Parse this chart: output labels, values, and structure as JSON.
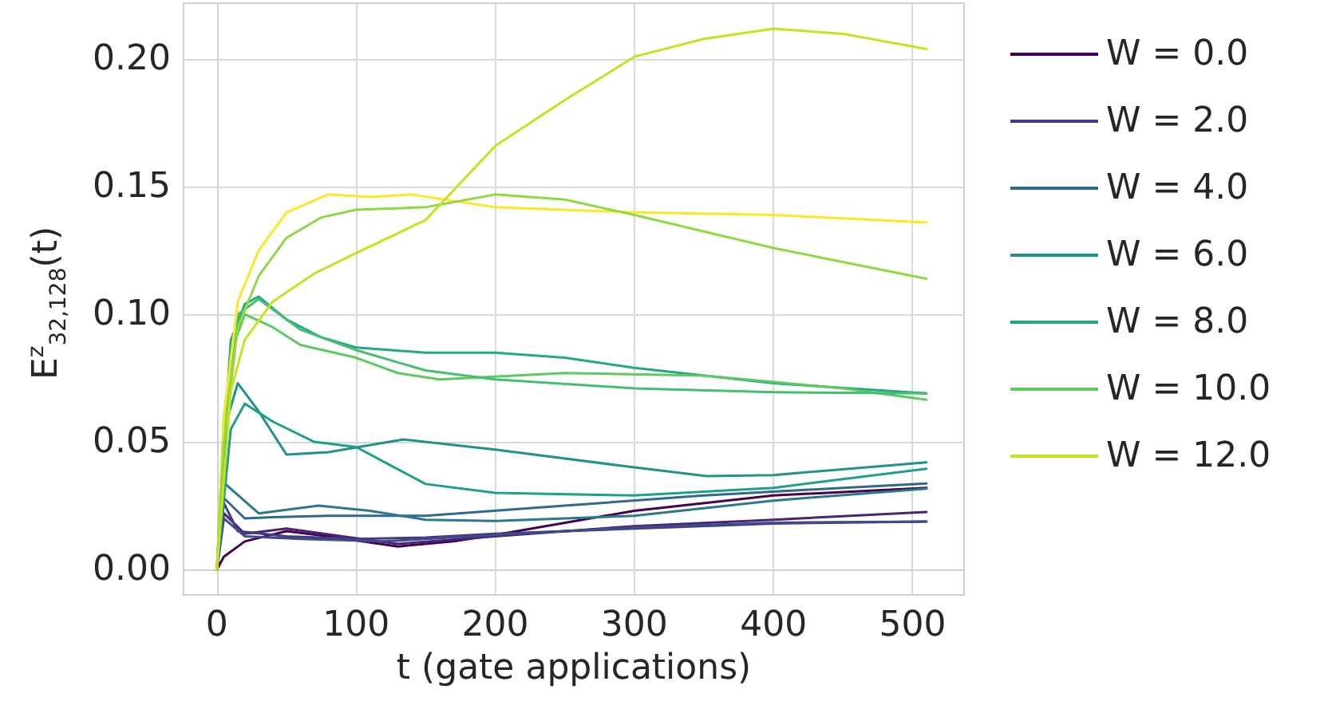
{
  "chart_data": {
    "type": "line",
    "xlabel": "t (gate applications)",
    "ylabel": "E$^{z}$$_{32,128}$(t)",
    "xlim": [
      -24,
      537
    ],
    "xticks": [
      0,
      100,
      200,
      300,
      400,
      500
    ],
    "ylim": [
      -0.01,
      0.222
    ],
    "yticks": [
      {
        "value": 0,
        "label": "0.00"
      },
      {
        "value": 0.05,
        "label": "0.05"
      },
      {
        "value": 0.1,
        "label": "0.10"
      },
      {
        "value": 0.15,
        "label": "0.15"
      },
      {
        "value": 0.2,
        "label": "0.20"
      }
    ],
    "grid": true,
    "legend": "right",
    "marker": "none",
    "line_style": "solid",
    "series": [
      {
        "name": "W = 0.0",
        "color": "#440154",
        "x": [
          0,
          5,
          20,
          50,
          80,
          130,
          170,
          200,
          300,
          400,
          510
        ],
        "values": [
          0,
          0.005,
          0.011,
          0.015,
          0.013,
          0.009,
          0.011,
          0.0135,
          0.023,
          0.029,
          0.032
        ]
      },
      {
        "color": "#482475",
        "x": [
          0,
          5,
          20,
          50,
          90,
          130,
          200,
          300,
          400,
          510
        ],
        "values": [
          0,
          0.022,
          0.014,
          0.016,
          0.013,
          0.01,
          0.013,
          0.017,
          0.0195,
          0.0225
        ]
      },
      {
        "name": "W = 2.0",
        "color": "#443983",
        "x": [
          0,
          5,
          15,
          50,
          100,
          150,
          200,
          300,
          400,
          510
        ],
        "values": [
          0,
          0.026,
          0.015,
          0.013,
          0.012,
          0.0125,
          0.014,
          0.016,
          0.018,
          0.0188
        ]
      },
      {
        "color": "#3e4a89",
        "x": [
          0,
          5,
          20,
          60,
          120,
          200,
          300,
          400,
          510
        ],
        "values": [
          0,
          0.02,
          0.013,
          0.012,
          0.011,
          0.0135,
          0.0165,
          0.0183,
          0.0188
        ]
      },
      {
        "name": "W = 4.0",
        "color": "#31688e",
        "x": [
          0,
          5,
          20,
          40,
          80,
          150,
          250,
          350,
          450,
          510
        ],
        "values": [
          0,
          0.028,
          0.02,
          0.0205,
          0.021,
          0.021,
          0.025,
          0.029,
          0.032,
          0.0337
        ]
      },
      {
        "color": "#2a788e",
        "x": [
          0,
          5,
          30,
          73,
          110,
          150,
          200,
          300,
          400,
          510
        ],
        "values": [
          0,
          0.034,
          0.022,
          0.025,
          0.023,
          0.0195,
          0.019,
          0.021,
          0.027,
          0.0317
        ]
      },
      {
        "name": "W = 6.0",
        "color": "#21918c",
        "x": [
          0,
          8,
          15,
          30,
          50,
          80,
          134,
          200,
          300,
          352,
          400,
          510
        ],
        "values": [
          0,
          0.06,
          0.073,
          0.062,
          0.045,
          0.046,
          0.051,
          0.047,
          0.04,
          0.0366,
          0.037,
          0.042
        ]
      },
      {
        "color": "#1f9e89",
        "x": [
          0,
          10,
          20,
          40,
          70,
          100,
          150,
          200,
          300,
          400,
          510
        ],
        "values": [
          0,
          0.055,
          0.065,
          0.058,
          0.05,
          0.048,
          0.0335,
          0.03,
          0.029,
          0.032,
          0.0395
        ]
      },
      {
        "name": "W = 8.0",
        "color": "#22a884",
        "x": [
          0,
          5,
          10,
          20,
          30,
          50,
          75,
          100,
          150,
          200,
          250,
          300,
          400,
          510
        ],
        "values": [
          0,
          0.05,
          0.09,
          0.104,
          0.107,
          0.098,
          0.091,
          0.087,
          0.085,
          0.085,
          0.083,
          0.079,
          0.073,
          0.069
        ]
      },
      {
        "name": "W = 10.0",
        "color": "#5ec962",
        "x": [
          0,
          5,
          10,
          20,
          40,
          60,
          100,
          130,
          160,
          250,
          350,
          450,
          510
        ],
        "values": [
          0,
          0.05,
          0.085,
          0.1,
          0.095,
          0.088,
          0.083,
          0.077,
          0.0745,
          0.077,
          0.076,
          0.071,
          0.0665
        ]
      },
      {
        "color": "#44bf70",
        "x": [
          0,
          5,
          15,
          30,
          60,
          100,
          150,
          200,
          300,
          400,
          510
        ],
        "values": [
          0,
          0.06,
          0.1,
          0.106,
          0.094,
          0.086,
          0.078,
          0.0745,
          0.071,
          0.0695,
          0.069
        ]
      },
      {
        "color": "#fde725",
        "x": [
          0,
          5,
          15,
          30,
          50,
          80,
          110,
          140,
          200,
          300,
          400,
          510
        ],
        "values": [
          0,
          0.06,
          0.105,
          0.125,
          0.14,
          0.147,
          0.146,
          0.147,
          0.142,
          0.14,
          0.139,
          0.136
        ]
      },
      {
        "color": "#8fd744",
        "x": [
          0,
          5,
          15,
          30,
          50,
          75,
          100,
          150,
          200,
          250,
          300,
          400,
          510
        ],
        "values": [
          0,
          0.05,
          0.095,
          0.115,
          0.13,
          0.138,
          0.141,
          0.142,
          0.147,
          0.145,
          0.139,
          0.126,
          0.114
        ]
      },
      {
        "name": "W = 12.0",
        "color": "#c8e020",
        "x": [
          0,
          10,
          20,
          40,
          70,
          100,
          150,
          200,
          250,
          300,
          350,
          400,
          450,
          510
        ],
        "values": [
          0,
          0.07,
          0.09,
          0.105,
          0.116,
          0.124,
          0.137,
          0.166,
          0.184,
          0.201,
          0.208,
          0.212,
          0.21,
          0.204
        ]
      }
    ]
  }
}
